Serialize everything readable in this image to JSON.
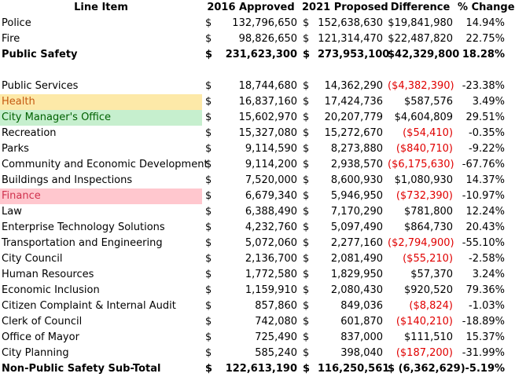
{
  "headers": {
    "item": "Line Item",
    "approved_2016": "2016 Approved",
    "proposed_2021": "2021 Proposed",
    "difference": "Difference",
    "pct_change": "% Change"
  },
  "colors": {
    "negative": "#e00000",
    "highlight_yellow": "#fde9a8",
    "highlight_green": "#c6efce",
    "highlight_red": "#ffc7ce"
  },
  "rows": [
    {
      "type": "data",
      "item": "Police",
      "d1": "$",
      "v16": "132,796,650",
      "d2": "$",
      "v21": "152,638,630",
      "diff": "$19,841,980",
      "pct": "14.94%",
      "neg": false
    },
    {
      "type": "data",
      "item": "Fire",
      "d1": "$",
      "v16": "98,826,650",
      "d2": "$",
      "v21": "121,314,470",
      "diff": "$22,487,820",
      "pct": "22.75%",
      "neg": false
    },
    {
      "type": "total",
      "item": "Public Safety",
      "d1": "$",
      "v16": "231,623,300",
      "d2": "$",
      "v21": "273,953,100",
      "diff": "$42,329,800",
      "pct": "18.28%",
      "neg": false
    },
    {
      "type": "blank"
    },
    {
      "type": "data",
      "item": "Public Services",
      "d1": "$",
      "v16": "18,744,680",
      "d2": "$",
      "v21": "14,362,290",
      "diff": "($4,382,390)",
      "pct": "-23.38%",
      "neg": true
    },
    {
      "type": "data",
      "item": "Health",
      "d1": "$",
      "v16": "16,837,160",
      "d2": "$",
      "v21": "17,424,736",
      "diff": "$587,576",
      "pct": "3.49%",
      "neg": false,
      "highlight": "yellow"
    },
    {
      "type": "data",
      "item": "City Manager's Office",
      "d1": "$",
      "v16": "15,602,970",
      "d2": "$",
      "v21": "20,207,779",
      "diff": "$4,604,809",
      "pct": "29.51%",
      "neg": false,
      "highlight": "green"
    },
    {
      "type": "data",
      "item": "Recreation",
      "d1": "$",
      "v16": "15,327,080",
      "d2": "$",
      "v21": "15,272,670",
      "diff": "($54,410)",
      "pct": "-0.35%",
      "neg": true
    },
    {
      "type": "data",
      "item": "Parks",
      "d1": "$",
      "v16": "9,114,590",
      "d2": "$",
      "v21": "8,273,880",
      "diff": "($840,710)",
      "pct": "-9.22%",
      "neg": true
    },
    {
      "type": "data",
      "item": "Community and Economic Development",
      "d1": "$",
      "v16": "9,114,200",
      "d2": "$",
      "v21": "2,938,570",
      "diff": "($6,175,630)",
      "pct": "-67.76%",
      "neg": true
    },
    {
      "type": "data",
      "item": "Buildings and Inspections",
      "d1": "$",
      "v16": "7,520,000",
      "d2": "$",
      "v21": "8,600,930",
      "diff": "$1,080,930",
      "pct": "14.37%",
      "neg": false
    },
    {
      "type": "data",
      "item": "Finance",
      "d1": "$",
      "v16": "6,679,340",
      "d2": "$",
      "v21": "5,946,950",
      "diff": "($732,390)",
      "pct": "-10.97%",
      "neg": true,
      "highlight": "red"
    },
    {
      "type": "data",
      "item": "Law",
      "d1": "$",
      "v16": "6,388,490",
      "d2": "$",
      "v21": "7,170,290",
      "diff": "$781,800",
      "pct": "12.24%",
      "neg": false
    },
    {
      "type": "data",
      "item": "Enterprise Technology Solutions",
      "d1": "$",
      "v16": "4,232,760",
      "d2": "$",
      "v21": "5,097,490",
      "diff": "$864,730",
      "pct": "20.43%",
      "neg": false
    },
    {
      "type": "data",
      "item": "Transportation and Engineering",
      "d1": "$",
      "v16": "5,072,060",
      "d2": "$",
      "v21": "2,277,160",
      "diff": "($2,794,900)",
      "pct": "-55.10%",
      "neg": true
    },
    {
      "type": "data",
      "item": "City Council",
      "d1": "$",
      "v16": "2,136,700",
      "d2": "$",
      "v21": "2,081,490",
      "diff": "($55,210)",
      "pct": "-2.58%",
      "neg": true
    },
    {
      "type": "data",
      "item": "Human Resources",
      "d1": "$",
      "v16": "1,772,580",
      "d2": "$",
      "v21": "1,829,950",
      "diff": "$57,370",
      "pct": "3.24%",
      "neg": false
    },
    {
      "type": "data",
      "item": "Economic Inclusion",
      "d1": "$",
      "v16": "1,159,910",
      "d2": "$",
      "v21": "2,080,430",
      "diff": "$920,520",
      "pct": "79.36%",
      "neg": false
    },
    {
      "type": "data",
      "item": "Citizen Complaint & Internal Audit",
      "d1": "$",
      "v16": "857,860",
      "d2": "$",
      "v21": "849,036",
      "diff": "($8,824)",
      "pct": "-1.03%",
      "neg": true
    },
    {
      "type": "data",
      "item": "Clerk of Council",
      "d1": "$",
      "v16": "742,080",
      "d2": "$",
      "v21": "601,870",
      "diff": "($140,210)",
      "pct": "-18.89%",
      "neg": true
    },
    {
      "type": "data",
      "item": "Office of Mayor",
      "d1": "$",
      "v16": "725,490",
      "d2": "$",
      "v21": "837,000",
      "diff": "$111,510",
      "pct": "15.37%",
      "neg": false
    },
    {
      "type": "data",
      "item": "City Planning",
      "d1": "$",
      "v16": "585,240",
      "d2": "$",
      "v21": "398,040",
      "diff": "($187,200)",
      "pct": "-31.99%",
      "neg": true
    },
    {
      "type": "total",
      "item": "Non-Public Safety Sub-Total",
      "d1": "$",
      "v16": "122,613,190",
      "d2": "$",
      "v21": "116,250,561",
      "diff": "$ (6,362,629)",
      "pct": "-5.19%",
      "neg": false
    }
  ]
}
